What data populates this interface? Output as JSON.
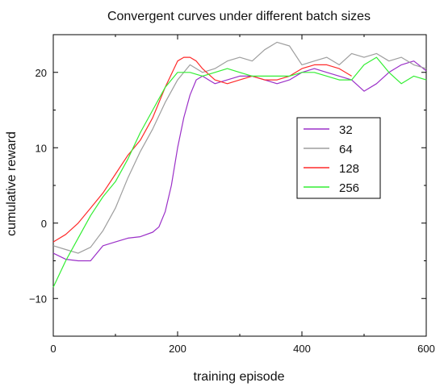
{
  "chart_data": {
    "type": "line",
    "title": "Convergent curves under different batch sizes",
    "xlabel": "training episode",
    "ylabel": "cumulative reward",
    "xlim": [
      0,
      600
    ],
    "ylim": [
      -15,
      25
    ],
    "xticks": [
      0,
      200,
      400,
      600
    ],
    "yticks": [
      -10,
      0,
      10,
      20
    ],
    "legend_position": "right",
    "grid": false,
    "series": [
      {
        "name": "32",
        "color": "#9b30c8",
        "x": [
          0,
          20,
          40,
          60,
          80,
          100,
          120,
          140,
          160,
          170,
          180,
          190,
          200,
          210,
          220,
          230,
          240,
          250,
          260,
          280,
          300,
          320,
          340,
          360,
          380,
          400,
          420,
          440,
          460,
          480,
          500,
          520,
          540,
          560,
          580,
          600
        ],
        "y": [
          -4,
          -4.8,
          -5,
          -5,
          -3,
          -2.5,
          -2,
          -1.8,
          -1.2,
          -0.5,
          1.5,
          5,
          10,
          14,
          17,
          19,
          19.5,
          19,
          18.5,
          19,
          19.5,
          19.5,
          19,
          18.5,
          19,
          20,
          20.5,
          20,
          19.5,
          19,
          17.5,
          18.5,
          20,
          21,
          21.5,
          20.2
        ]
      },
      {
        "name": "64",
        "color": "#9e9e9e",
        "x": [
          0,
          20,
          40,
          60,
          80,
          100,
          120,
          140,
          160,
          180,
          200,
          220,
          240,
          260,
          280,
          300,
          320,
          340,
          360,
          380,
          400,
          420,
          440,
          460,
          480,
          500,
          520,
          540,
          560,
          580,
          600
        ],
        "y": [
          -3,
          -3.5,
          -4,
          -3.2,
          -1,
          2,
          6,
          9.5,
          12.5,
          16,
          19,
          21,
          20,
          20.5,
          21.5,
          22,
          21.5,
          23,
          24,
          23.5,
          21,
          21.5,
          22,
          21,
          22.5,
          22,
          22.5,
          21.5,
          22,
          21,
          20.5
        ]
      },
      {
        "name": "128",
        "color": "#ff2a2a",
        "x": [
          0,
          20,
          40,
          60,
          80,
          100,
          120,
          140,
          160,
          180,
          200,
          210,
          220,
          230,
          240,
          260,
          280,
          300,
          320,
          340,
          360,
          380,
          400,
          420,
          440,
          460,
          480
        ],
        "y": [
          -2.5,
          -1.5,
          0,
          2,
          4,
          6.5,
          9,
          11,
          14,
          18,
          21.5,
          22,
          22,
          21.5,
          20.5,
          19,
          18.5,
          19,
          19.5,
          19,
          19,
          19.5,
          20.5,
          21,
          21,
          20.5,
          19.5
        ]
      },
      {
        "name": "256",
        "color": "#33ee33",
        "x": [
          0,
          20,
          40,
          60,
          80,
          100,
          120,
          140,
          160,
          180,
          200,
          220,
          240,
          260,
          280,
          300,
          320,
          340,
          360,
          380,
          400,
          420,
          440,
          460,
          480,
          500,
          520,
          540,
          560,
          580,
          600
        ],
        "y": [
          -8.5,
          -5,
          -2,
          1,
          3.5,
          5.5,
          8.5,
          12,
          15,
          18,
          20,
          20,
          19.5,
          20,
          20.5,
          20,
          19.5,
          19.5,
          19.5,
          19.5,
          20,
          20,
          19.5,
          19,
          19,
          21,
          22,
          20,
          18.5,
          19.5,
          19
        ]
      }
    ]
  }
}
